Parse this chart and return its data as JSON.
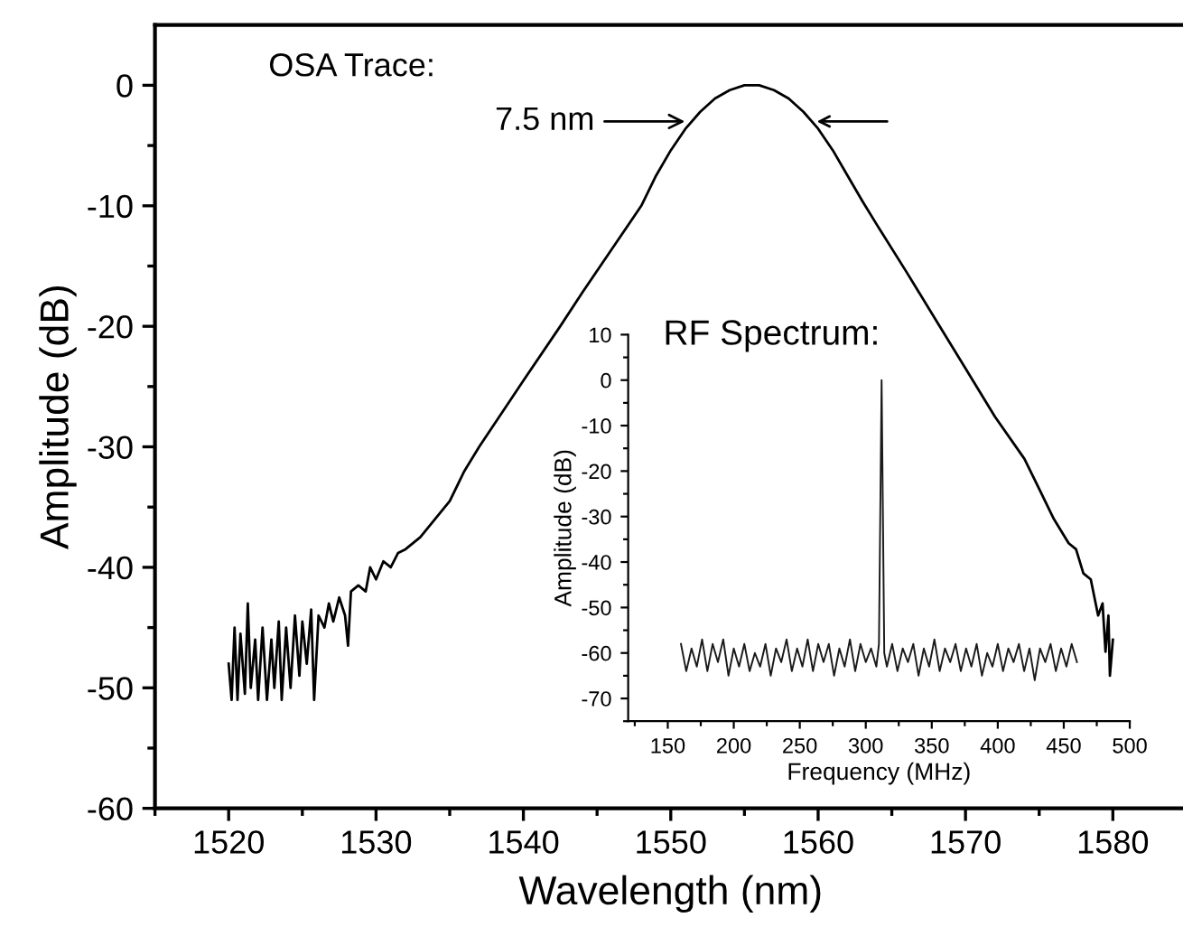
{
  "chart_data": [
    {
      "type": "line",
      "xlabel": "Wavelength (nm)",
      "ylabel": "Amplitude (dB)",
      "annotations": [
        "OSA Trace:",
        {
          "text": "7.5 nm",
          "x": 1551.3,
          "y": -3
        }
      ],
      "xlim": [
        1515,
        1585
      ],
      "ylim": [
        -60,
        5
      ],
      "xticks": [
        1520,
        1530,
        1540,
        1550,
        1560,
        1570,
        1580,
        {
          "value": 1515,
          "label": null
        },
        {
          "value": 1525,
          "label": null
        },
        {
          "value": 1535,
          "label": null
        },
        {
          "value": 1545,
          "label": null
        },
        {
          "value": 1555,
          "label": null
        },
        {
          "value": 1565,
          "label": null
        },
        {
          "value": 1575,
          "label": null
        }
      ],
      "yticks": [
        -60,
        -50,
        -40,
        -30,
        -20,
        -10,
        0,
        {
          "value": -55,
          "label": null
        },
        {
          "value": -45,
          "label": null
        },
        {
          "value": -35,
          "label": null
        },
        {
          "value": -25,
          "label": null
        },
        {
          "value": -15,
          "label": null
        },
        {
          "value": -5,
          "label": null
        }
      ],
      "series": [
        {
          "color": "#000000",
          "x": [
            1520,
            1520.2,
            1520.4,
            1520.6,
            1520.8,
            1521.1,
            1521.3,
            1521.5,
            1521.8,
            1522,
            1522.3,
            1522.6,
            1522.9,
            1523.1,
            1523.4,
            1523.6,
            1523.9,
            1524.2,
            1524.5,
            1524.8,
            1525,
            1525.3,
            1525.6,
            1525.8,
            1526.1,
            1526.5,
            1526.8,
            1527.1,
            1527.5,
            1527.9,
            1528.1,
            1528.3,
            1528.8,
            1529.3,
            1529.6,
            1530,
            1530.5,
            1531,
            1531.5,
            1532,
            1533,
            1534,
            1535,
            1536,
            1537,
            1540,
            1542.5,
            1544,
            1546,
            1548,
            1549,
            1550,
            1551,
            1552,
            1553,
            1554,
            1555,
            1555.5,
            1556,
            1557,
            1558,
            1559,
            1560,
            1561,
            1562,
            1563,
            1564,
            1566,
            1568,
            1570,
            1572,
            1574,
            1575,
            1576,
            1577,
            1577.5,
            1578,
            1578.5,
            1579,
            1579.3,
            1579.5,
            1579.7,
            1579.8,
            1580
          ],
          "values": [
            -48,
            -51,
            -45,
            -51,
            -45.5,
            -50.5,
            -43,
            -50,
            -46,
            -51,
            -45,
            -51,
            -46,
            -50,
            -44.5,
            -51,
            -45,
            -50,
            -44,
            -49,
            -44.5,
            -48,
            -43.5,
            -51,
            -44,
            -45,
            -43,
            -44.5,
            -42.5,
            -44,
            -46.5,
            -42,
            -41.5,
            -42,
            -40,
            -41,
            -39.5,
            -40,
            -38.8,
            -38.5,
            -37.5,
            -36,
            -34.5,
            -32,
            -30,
            -24.5,
            -20,
            -17.2,
            -13.6,
            -10,
            -7.5,
            -5.4,
            -3.6,
            -2.2,
            -1.1,
            -0.4,
            0,
            0,
            0,
            -0.4,
            -1.1,
            -2.2,
            -3.6,
            -5.4,
            -7.5,
            -9.6,
            -11.6,
            -15.5,
            -19.5,
            -23.5,
            -27.5,
            -31,
            -33.5,
            -36,
            -38,
            -38.5,
            -40.5,
            -41,
            -44,
            -43,
            -47,
            -44,
            -49,
            -46
          ]
        }
      ]
    },
    {
      "type": "line",
      "xlabel": "Frequency (MHz)",
      "ylabel": "Amplitude (dB)",
      "annotations": [
        "RF Spectrum:"
      ],
      "xlim": [
        120,
        500
      ],
      "ylim": [
        -75,
        10
      ],
      "xticks": [
        150,
        200,
        250,
        300,
        350,
        400,
        450,
        500,
        {
          "value": 125,
          "label": null
        },
        {
          "value": 175,
          "label": null
        },
        {
          "value": 225,
          "label": null
        },
        {
          "value": 275,
          "label": null
        },
        {
          "value": 325,
          "label": null
        },
        {
          "value": 375,
          "label": null
        },
        {
          "value": 425,
          "label": null
        },
        {
          "value": 475,
          "label": null
        }
      ],
      "yticks": [
        -70,
        -60,
        -50,
        -40,
        -30,
        -20,
        -10,
        0,
        10,
        {
          "value": -75,
          "label": null
        },
        {
          "value": -65,
          "label": null
        },
        {
          "value": -55,
          "label": null
        },
        {
          "value": -45,
          "label": null
        },
        {
          "value": -35,
          "label": null
        },
        {
          "value": -25,
          "label": null
        },
        {
          "value": -15,
          "label": null
        },
        {
          "value": -5,
          "label": null
        },
        {
          "value": 5,
          "label": null
        }
      ],
      "series": [
        {
          "color": "#1a1a1a",
          "x": [
            160,
            164,
            168,
            172,
            176,
            180,
            184,
            188,
            192,
            196,
            200,
            204,
            208,
            212,
            216,
            220,
            224,
            228,
            232,
            236,
            240,
            244,
            248,
            252,
            256,
            260,
            264,
            268,
            272,
            276,
            280,
            284,
            288,
            292,
            296,
            300,
            304,
            308,
            310,
            312,
            314,
            316,
            320,
            324,
            328,
            332,
            336,
            340,
            344,
            348,
            352,
            356,
            360,
            364,
            368,
            372,
            376,
            380,
            384,
            388,
            392,
            396,
            400,
            404,
            408,
            412,
            416,
            420,
            424,
            428,
            432,
            436,
            440,
            444,
            448,
            452,
            456,
            460
          ],
          "values": [
            -58,
            -64,
            -59,
            -63,
            -57,
            -64,
            -58,
            -62,
            -57,
            -65,
            -59,
            -63,
            -58,
            -64,
            -60,
            -63,
            -58,
            -65,
            -59,
            -62,
            -57,
            -64,
            -59,
            -63,
            -57,
            -64,
            -58,
            -62,
            -58,
            -65,
            -59,
            -63,
            -57,
            -64,
            -58,
            -62,
            -59,
            -63,
            -58,
            0,
            -60,
            -63,
            -58,
            -64,
            -59,
            -62,
            -58,
            -65,
            -59,
            -63,
            -57,
            -64,
            -59,
            -62,
            -58,
            -64,
            -59,
            -63,
            -58,
            -65,
            -60,
            -63,
            -58,
            -64,
            -59,
            -62,
            -58,
            -64,
            -59,
            -66,
            -59,
            -62,
            -58,
            -64,
            -59,
            -63,
            -58,
            -62
          ]
        }
      ]
    }
  ]
}
